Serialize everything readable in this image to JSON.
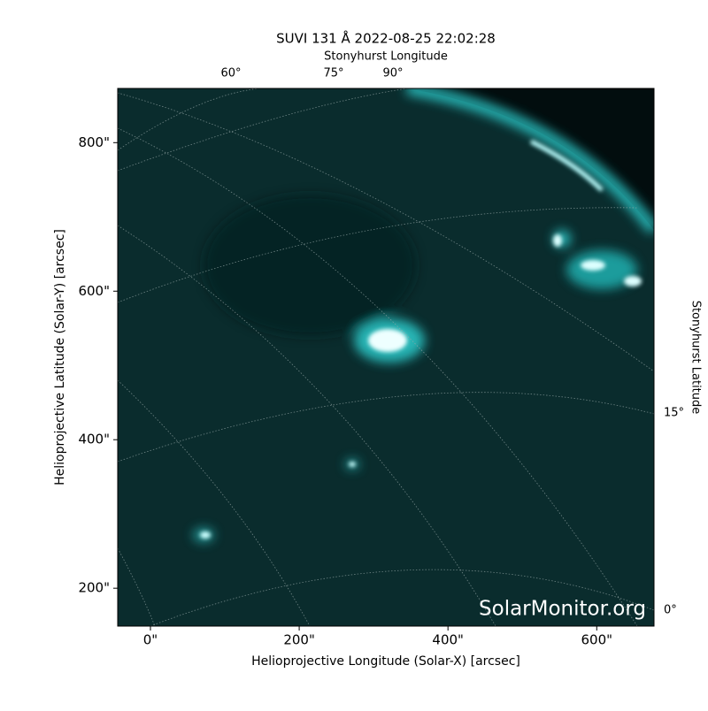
{
  "chart_data": {
    "type": "image",
    "title": "SUVI 131 Å 2022-08-25 22:02:28",
    "xlabel": "Helioprojective Longitude (Solar-X) [arcsec]",
    "ylabel": "Helioprojective Latitude (Solar-Y) [arcsec]",
    "top_label": "Stonyhurst Longitude",
    "right_label": "Stonyhurst Latitude",
    "top_ticks": [
      "60°",
      "75°",
      "90°"
    ],
    "right_ticks": [
      "15°",
      "0°"
    ],
    "watermark": "SolarMonitor.org",
    "xlim": [
      -44,
      677
    ],
    "ylim": [
      149,
      873
    ],
    "xticks": [
      {
        "value": 0,
        "label": "0\""
      },
      {
        "value": 200,
        "label": "200\""
      },
      {
        "value": 400,
        "label": "400\""
      },
      {
        "value": 600,
        "label": "600\""
      }
    ],
    "yticks": [
      {
        "value": 200,
        "label": "200\""
      },
      {
        "value": 400,
        "label": "400\""
      },
      {
        "value": 600,
        "label": "600\""
      },
      {
        "value": 800,
        "label": "800\""
      }
    ]
  }
}
